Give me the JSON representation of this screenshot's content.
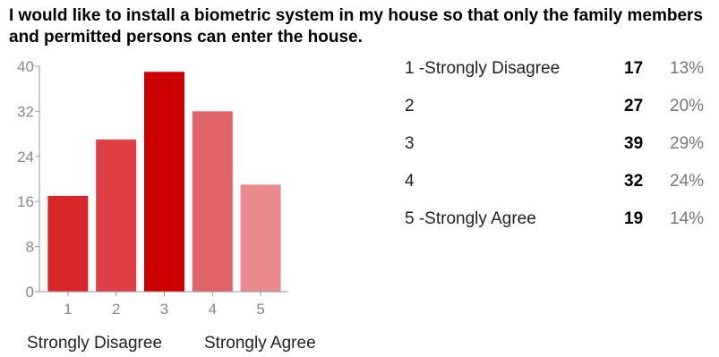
{
  "title": "I would like to install a biometric system in my house so that only the family members and permitted persons can enter the house.",
  "chart_data": {
    "type": "bar",
    "categories": [
      "1",
      "2",
      "3",
      "4",
      "5"
    ],
    "values": [
      17,
      27,
      39,
      32,
      19
    ],
    "ylim": [
      0,
      40
    ],
    "yticks": [
      "0",
      "8",
      "16",
      "24",
      "32",
      "40"
    ],
    "xlabel": "",
    "ylabel": "",
    "grid": false,
    "bar_colors": [
      "#d9262b",
      "#de4045",
      "#cc0000",
      "#e06468",
      "#e98b8e"
    ],
    "scale_labels": {
      "left": "Strongly Disagree",
      "right": "Strongly Agree"
    }
  },
  "table": {
    "rows": [
      {
        "label": "1 -Strongly Disagree",
        "count": "17",
        "percent": "13%"
      },
      {
        "label": "2",
        "count": "27",
        "percent": "20%"
      },
      {
        "label": "3",
        "count": "39",
        "percent": "29%"
      },
      {
        "label": "4",
        "count": "32",
        "percent": "24%"
      },
      {
        "label": "5 -Strongly Agree",
        "count": "19",
        "percent": "14%"
      }
    ]
  }
}
